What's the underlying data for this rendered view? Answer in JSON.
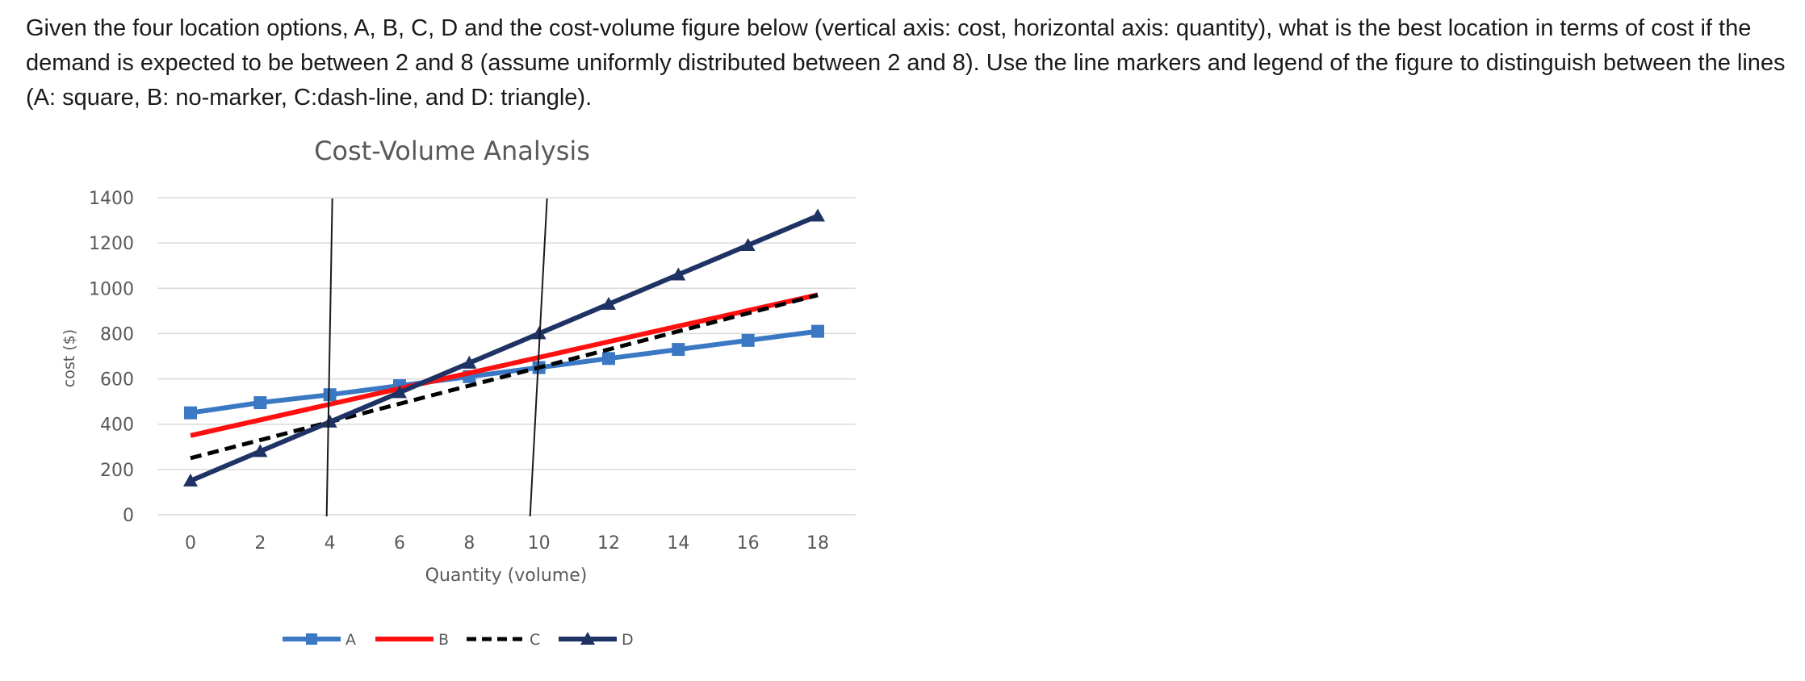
{
  "question": {
    "text": "Given the four location options, A, B, C, D and the cost-volume figure below (vertical axis: cost, horizontal axis: quantity), what is the best location in terms of cost if the demand is expected to be between 2 and 8 (assume uniformly distributed between 2 and 8).  Use the line markers and legend of the figure to distinguish between the lines (A: square, B: no-marker, C:dash-line, and D: triangle)."
  },
  "colors": {
    "A": "#3a78c3",
    "B": "#ff1010",
    "C": "#000000",
    "D": "#1f3264",
    "grid": "#d9d9d9",
    "axis_text": "#595959",
    "title": "#595959",
    "vline": "#1a1a1a"
  },
  "chart_data": {
    "type": "line",
    "title": "Cost-Volume Analysis",
    "xlabel": "Quantity (volume)",
    "ylabel": "cost ($)",
    "x": [
      0,
      2,
      4,
      6,
      8,
      10,
      12,
      14,
      16,
      18
    ],
    "xticks": [
      "0",
      "2",
      "4",
      "6",
      "8",
      "10",
      "12",
      "14",
      "16",
      "18"
    ],
    "yticks": [
      "0",
      "200",
      "400",
      "600",
      "800",
      "1000",
      "1200",
      "1400"
    ],
    "ylim": [
      0,
      1400
    ],
    "grid": true,
    "legend_position": "bottom",
    "series": [
      {
        "name": "A",
        "marker": "square",
        "style": "solid",
        "values": [
          450,
          495,
          530,
          570,
          610,
          650,
          690,
          730,
          770,
          810
        ]
      },
      {
        "name": "B",
        "marker": "none",
        "style": "solid",
        "values": [
          350,
          419,
          488,
          557,
          626,
          695,
          764,
          833,
          902,
          971
        ]
      },
      {
        "name": "C",
        "marker": "none",
        "style": "dashed",
        "values": [
          250,
          330,
          410,
          490,
          570,
          650,
          730,
          810,
          890,
          970
        ]
      },
      {
        "name": "D",
        "marker": "triangle",
        "style": "solid",
        "values": [
          150,
          280,
          410,
          540,
          670,
          800,
          930,
          1060,
          1190,
          1320
        ]
      }
    ],
    "annotations": [
      {
        "type": "vertical_line",
        "x": 4
      },
      {
        "type": "vertical_line",
        "x": 10
      }
    ]
  }
}
